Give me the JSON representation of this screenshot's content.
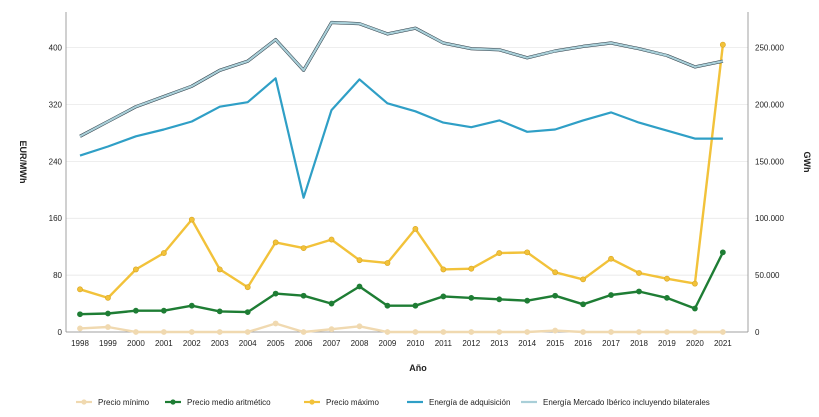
{
  "chart_data": {
    "type": "line",
    "title": "",
    "xlabel": "Año",
    "ylabel_left": "EUR/MWh",
    "ylabel_right": "GWh",
    "categories": [
      "1998",
      "1999",
      "2000",
      "2001",
      "2002",
      "2003",
      "2004",
      "2005",
      "2006",
      "2007",
      "2008",
      "2009",
      "2010",
      "2011",
      "2012",
      "2013",
      "2014",
      "2015",
      "2016",
      "2017",
      "2018",
      "2019",
      "2020",
      "2021"
    ],
    "yticks_left": [
      "0",
      "80",
      "160",
      "240",
      "320",
      "400"
    ],
    "yticks_right": [
      "0",
      "50.000",
      "100.000",
      "150.000",
      "200.000",
      "250.000"
    ],
    "ylim_left": [
      0,
      450
    ],
    "ylim_right": [
      0,
      281250
    ],
    "grid": "horizontal",
    "legend_position": "bottom",
    "series": [
      {
        "name": "Precio mínimo",
        "axis": "left",
        "color": "#f0d9b0",
        "values": [
          5,
          7,
          0,
          0,
          0,
          0,
          0,
          12,
          0,
          4,
          8,
          0,
          0,
          0,
          0,
          0,
          0,
          2,
          0,
          0,
          0,
          0,
          0,
          0
        ]
      },
      {
        "name": "Precio medio aritmético",
        "axis": "left",
        "color": "#1e7d34",
        "values": [
          25,
          26,
          30,
          30,
          37,
          29,
          28,
          54,
          51,
          40,
          64,
          37,
          37,
          50,
          48,
          46,
          44,
          51,
          39,
          52,
          57,
          48,
          33,
          112
        ]
      },
      {
        "name": "Precio máximo",
        "axis": "left",
        "color": "#f2c23a",
        "values": [
          60,
          48,
          88,
          111,
          158,
          88,
          63,
          126,
          118,
          130,
          101,
          97,
          145,
          88,
          89,
          111,
          112,
          84,
          74,
          103,
          83,
          75,
          68,
          404
        ]
      },
      {
        "name": "Energía de adquisición",
        "axis": "right",
        "color": "#2f9fc6",
        "values": [
          155000,
          163000,
          172000,
          178000,
          185000,
          198000,
          202000,
          223000,
          118000,
          195000,
          222000,
          201000,
          194000,
          184000,
          180000,
          186000,
          176000,
          178000,
          186000,
          193000,
          184000,
          177000,
          170000,
          170000
        ]
      },
      {
        "name": "Energía Mercado Ibérico incluyendo bilaterales",
        "axis": "right",
        "color": "#a9cfd8",
        "values": [
          172000,
          185000,
          198000,
          207000,
          216000,
          230000,
          238000,
          257000,
          230000,
          272000,
          271000,
          262000,
          267000,
          254000,
          249000,
          248000,
          241000,
          247000,
          251000,
          254000,
          249000,
          243000,
          233000,
          238000
        ]
      }
    ]
  }
}
